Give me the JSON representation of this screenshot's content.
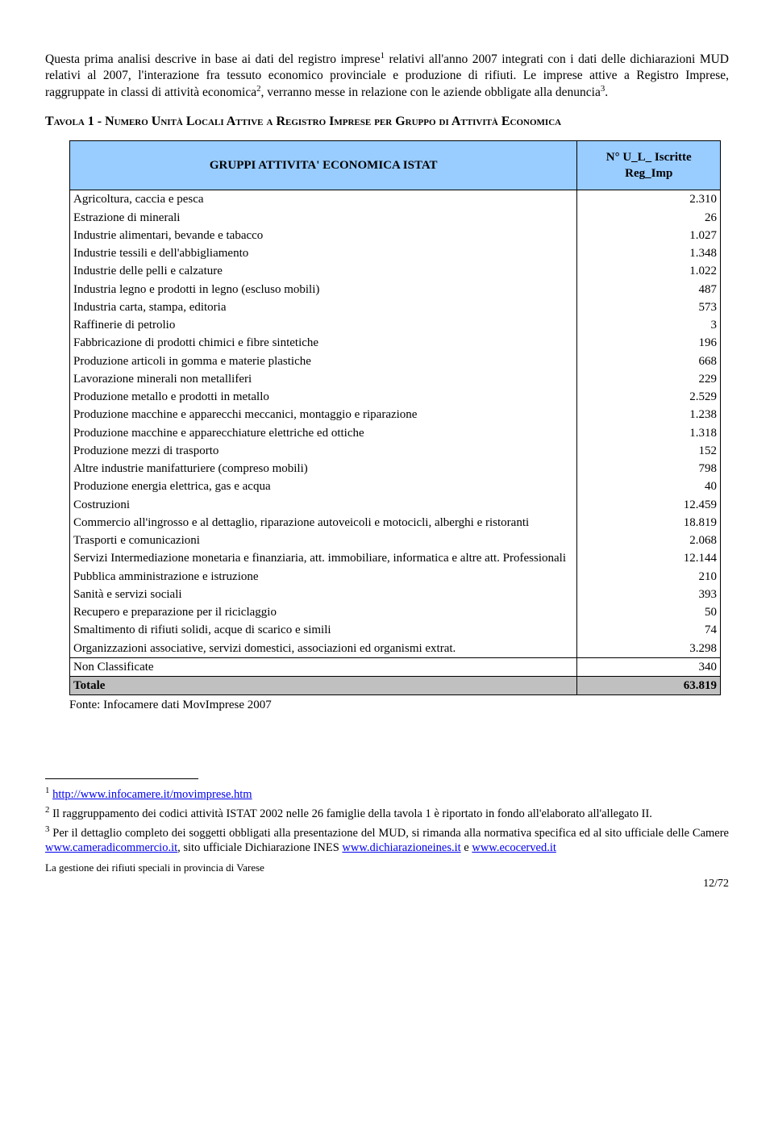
{
  "paragraph": {
    "t1": "Questa prima analisi descrive in base ai dati del registro imprese",
    "s1": "1",
    "t2": " relativi all'anno 2007 integrati con i dati delle dichiarazioni MUD relativi al 2007, l'interazione fra tessuto economico provinciale e produzione di rifiuti. Le imprese attive a Registro Imprese, raggruppate in classi di attività economica",
    "s2": "2",
    "t3": ", verranno messe in relazione con le aziende obbligate alla denuncia",
    "s3": "3",
    "t4": "."
  },
  "heading": "Tavola 1 - Numero Unità Locali Attive a Registro Imprese per Gruppo di Attività Economica",
  "table": {
    "header1": "GRUPPI ATTIVITA' ECONOMICA ISTAT",
    "header2": "N° U_L_ Iscritte Reg_Imp",
    "rows": [
      {
        "label": "Agricoltura, caccia e pesca",
        "value": "2.310"
      },
      {
        "label": "Estrazione di minerali",
        "value": "26"
      },
      {
        "label": "Industrie alimentari, bevande e tabacco",
        "value": "1.027"
      },
      {
        "label": "Industrie tessili e dell'abbigliamento",
        "value": "1.348"
      },
      {
        "label": "Industrie delle pelli e calzature",
        "value": "1.022"
      },
      {
        "label": "Industria legno e prodotti in legno (escluso mobili)",
        "value": "487"
      },
      {
        "label": "Industria carta, stampa, editoria",
        "value": "573"
      },
      {
        "label": "Raffinerie di petrolio",
        "value": "3"
      },
      {
        "label": "Fabbricazione di prodotti chimici e fibre sintetiche",
        "value": "196"
      },
      {
        "label": "Produzione articoli in gomma e materie plastiche",
        "value": "668"
      },
      {
        "label": "Lavorazione minerali non metalliferi",
        "value": "229"
      },
      {
        "label": "Produzione metallo e prodotti in metallo",
        "value": "2.529"
      },
      {
        "label": "Produzione macchine e apparecchi meccanici, montaggio e riparazione",
        "value": "1.238"
      },
      {
        "label": "Produzione macchine e apparecchiature elettriche ed ottiche",
        "value": "1.318"
      },
      {
        "label": "Produzione mezzi di trasporto",
        "value": "152"
      },
      {
        "label": "Altre industrie manifatturiere (compreso mobili)",
        "value": "798"
      },
      {
        "label": "Produzione energia elettrica, gas e acqua",
        "value": "40"
      },
      {
        "label": "Costruzioni",
        "value": "12.459"
      },
      {
        "label": "Commercio all'ingrosso e al dettaglio, riparazione autoveicoli e motocicli, alberghi e ristoranti",
        "value": "18.819"
      },
      {
        "label": "Trasporti e comunicazioni",
        "value": "2.068"
      },
      {
        "label": "Servizi Intermediazione monetaria e finanziaria, att. immobiliare, informatica e altre att. Professionali",
        "value": "12.144"
      },
      {
        "label": "Pubblica amministrazione e istruzione",
        "value": "210"
      },
      {
        "label": "Sanità e servizi sociali",
        "value": "393"
      },
      {
        "label": "Recupero e preparazione per il riciclaggio",
        "value": "50"
      },
      {
        "label": "Smaltimento di rifiuti solidi, acque di scarico e simili",
        "value": "74"
      },
      {
        "label": "Organizzazioni associative, servizi domestici, associazioni ed organismi extrat.",
        "value": "3.298"
      }
    ],
    "nonclass": {
      "label": "Non Classificate",
      "value": "340"
    },
    "total": {
      "label": "Totale",
      "value": "63.819"
    }
  },
  "source": "Fonte: Infocamere dati MovImprese 2007",
  "footnotes": {
    "f1_num": "1",
    "f1_link": "http://www.infocamere.it/movimprese.htm",
    "f2_num": "2",
    "f2_text": " Il raggruppamento dei codici attività ISTAT 2002 nelle 26 famiglie della tavola 1 è riportato in fondo all'elaborato all'allegato II.",
    "f3_num": "3",
    "f3_a": " Per il dettaglio completo dei soggetti obbligati alla presentazione del MUD, si rimanda alla normativa specifica ed al sito ufficiale delle Camere ",
    "f3_l1": "www.cameradicommercio.it",
    "f3_b": ", sito ufficiale Dichiarazione INES ",
    "f3_l2": "www.dichiarazioneines.it",
    "f3_c": " e ",
    "f3_l3": "www.ecocerved.it"
  },
  "footer": "La gestione dei rifiuti speciali in provincia di Varese",
  "page": "12/72",
  "colors": {
    "header_bg": "#99ccff",
    "total_bg": "#c0c0c0",
    "link": "#0000ee"
  }
}
